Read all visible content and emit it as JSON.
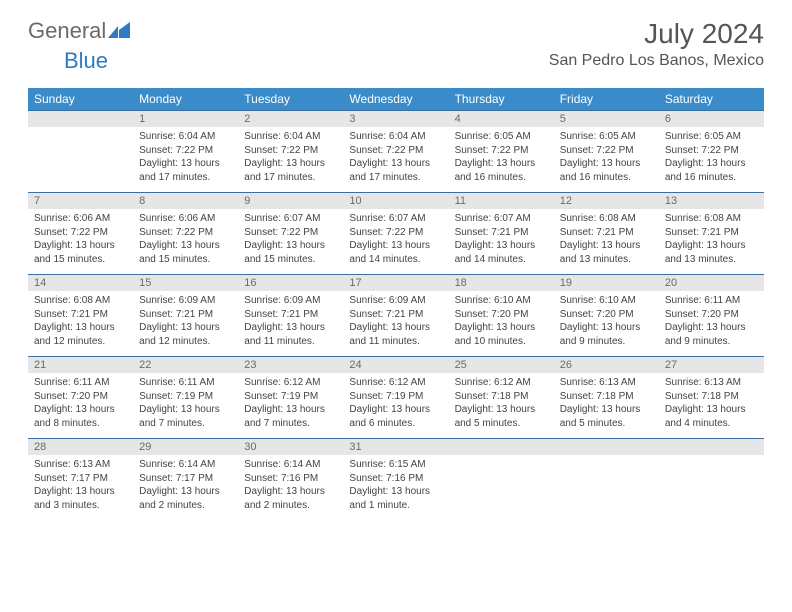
{
  "brand": {
    "general": "General",
    "blue": "Blue",
    "mark_color": "#2d7cc1",
    "text_gray": "#6a6a6a"
  },
  "header": {
    "month_title": "July 2024",
    "location": "San Pedro Los Banos, Mexico"
  },
  "colors": {
    "header_row_bg": "#3a8bc9",
    "header_row_text": "#ffffff",
    "daynum_bg": "#e6e6e6",
    "daynum_text": "#6b6b6b",
    "row_divider": "#3a6fa0",
    "body_text": "#444444"
  },
  "days_of_week": [
    "Sunday",
    "Monday",
    "Tuesday",
    "Wednesday",
    "Thursday",
    "Friday",
    "Saturday"
  ],
  "weeks": [
    {
      "nums": [
        "",
        "1",
        "2",
        "3",
        "4",
        "5",
        "6"
      ],
      "cells": [
        {
          "sunrise": "",
          "sunset": "",
          "daylight": ""
        },
        {
          "sunrise": "Sunrise: 6:04 AM",
          "sunset": "Sunset: 7:22 PM",
          "daylight": "Daylight: 13 hours and 17 minutes."
        },
        {
          "sunrise": "Sunrise: 6:04 AM",
          "sunset": "Sunset: 7:22 PM",
          "daylight": "Daylight: 13 hours and 17 minutes."
        },
        {
          "sunrise": "Sunrise: 6:04 AM",
          "sunset": "Sunset: 7:22 PM",
          "daylight": "Daylight: 13 hours and 17 minutes."
        },
        {
          "sunrise": "Sunrise: 6:05 AM",
          "sunset": "Sunset: 7:22 PM",
          "daylight": "Daylight: 13 hours and 16 minutes."
        },
        {
          "sunrise": "Sunrise: 6:05 AM",
          "sunset": "Sunset: 7:22 PM",
          "daylight": "Daylight: 13 hours and 16 minutes."
        },
        {
          "sunrise": "Sunrise: 6:05 AM",
          "sunset": "Sunset: 7:22 PM",
          "daylight": "Daylight: 13 hours and 16 minutes."
        }
      ]
    },
    {
      "nums": [
        "7",
        "8",
        "9",
        "10",
        "11",
        "12",
        "13"
      ],
      "cells": [
        {
          "sunrise": "Sunrise: 6:06 AM",
          "sunset": "Sunset: 7:22 PM",
          "daylight": "Daylight: 13 hours and 15 minutes."
        },
        {
          "sunrise": "Sunrise: 6:06 AM",
          "sunset": "Sunset: 7:22 PM",
          "daylight": "Daylight: 13 hours and 15 minutes."
        },
        {
          "sunrise": "Sunrise: 6:07 AM",
          "sunset": "Sunset: 7:22 PM",
          "daylight": "Daylight: 13 hours and 15 minutes."
        },
        {
          "sunrise": "Sunrise: 6:07 AM",
          "sunset": "Sunset: 7:22 PM",
          "daylight": "Daylight: 13 hours and 14 minutes."
        },
        {
          "sunrise": "Sunrise: 6:07 AM",
          "sunset": "Sunset: 7:21 PM",
          "daylight": "Daylight: 13 hours and 14 minutes."
        },
        {
          "sunrise": "Sunrise: 6:08 AM",
          "sunset": "Sunset: 7:21 PM",
          "daylight": "Daylight: 13 hours and 13 minutes."
        },
        {
          "sunrise": "Sunrise: 6:08 AM",
          "sunset": "Sunset: 7:21 PM",
          "daylight": "Daylight: 13 hours and 13 minutes."
        }
      ]
    },
    {
      "nums": [
        "14",
        "15",
        "16",
        "17",
        "18",
        "19",
        "20"
      ],
      "cells": [
        {
          "sunrise": "Sunrise: 6:08 AM",
          "sunset": "Sunset: 7:21 PM",
          "daylight": "Daylight: 13 hours and 12 minutes."
        },
        {
          "sunrise": "Sunrise: 6:09 AM",
          "sunset": "Sunset: 7:21 PM",
          "daylight": "Daylight: 13 hours and 12 minutes."
        },
        {
          "sunrise": "Sunrise: 6:09 AM",
          "sunset": "Sunset: 7:21 PM",
          "daylight": "Daylight: 13 hours and 11 minutes."
        },
        {
          "sunrise": "Sunrise: 6:09 AM",
          "sunset": "Sunset: 7:21 PM",
          "daylight": "Daylight: 13 hours and 11 minutes."
        },
        {
          "sunrise": "Sunrise: 6:10 AM",
          "sunset": "Sunset: 7:20 PM",
          "daylight": "Daylight: 13 hours and 10 minutes."
        },
        {
          "sunrise": "Sunrise: 6:10 AM",
          "sunset": "Sunset: 7:20 PM",
          "daylight": "Daylight: 13 hours and 9 minutes."
        },
        {
          "sunrise": "Sunrise: 6:11 AM",
          "sunset": "Sunset: 7:20 PM",
          "daylight": "Daylight: 13 hours and 9 minutes."
        }
      ]
    },
    {
      "nums": [
        "21",
        "22",
        "23",
        "24",
        "25",
        "26",
        "27"
      ],
      "cells": [
        {
          "sunrise": "Sunrise: 6:11 AM",
          "sunset": "Sunset: 7:20 PM",
          "daylight": "Daylight: 13 hours and 8 minutes."
        },
        {
          "sunrise": "Sunrise: 6:11 AM",
          "sunset": "Sunset: 7:19 PM",
          "daylight": "Daylight: 13 hours and 7 minutes."
        },
        {
          "sunrise": "Sunrise: 6:12 AM",
          "sunset": "Sunset: 7:19 PM",
          "daylight": "Daylight: 13 hours and 7 minutes."
        },
        {
          "sunrise": "Sunrise: 6:12 AM",
          "sunset": "Sunset: 7:19 PM",
          "daylight": "Daylight: 13 hours and 6 minutes."
        },
        {
          "sunrise": "Sunrise: 6:12 AM",
          "sunset": "Sunset: 7:18 PM",
          "daylight": "Daylight: 13 hours and 5 minutes."
        },
        {
          "sunrise": "Sunrise: 6:13 AM",
          "sunset": "Sunset: 7:18 PM",
          "daylight": "Daylight: 13 hours and 5 minutes."
        },
        {
          "sunrise": "Sunrise: 6:13 AM",
          "sunset": "Sunset: 7:18 PM",
          "daylight": "Daylight: 13 hours and 4 minutes."
        }
      ]
    },
    {
      "nums": [
        "28",
        "29",
        "30",
        "31",
        "",
        "",
        ""
      ],
      "cells": [
        {
          "sunrise": "Sunrise: 6:13 AM",
          "sunset": "Sunset: 7:17 PM",
          "daylight": "Daylight: 13 hours and 3 minutes."
        },
        {
          "sunrise": "Sunrise: 6:14 AM",
          "sunset": "Sunset: 7:17 PM",
          "daylight": "Daylight: 13 hours and 2 minutes."
        },
        {
          "sunrise": "Sunrise: 6:14 AM",
          "sunset": "Sunset: 7:16 PM",
          "daylight": "Daylight: 13 hours and 2 minutes."
        },
        {
          "sunrise": "Sunrise: 6:15 AM",
          "sunset": "Sunset: 7:16 PM",
          "daylight": "Daylight: 13 hours and 1 minute."
        },
        {
          "sunrise": "",
          "sunset": "",
          "daylight": ""
        },
        {
          "sunrise": "",
          "sunset": "",
          "daylight": ""
        },
        {
          "sunrise": "",
          "sunset": "",
          "daylight": ""
        }
      ]
    }
  ]
}
